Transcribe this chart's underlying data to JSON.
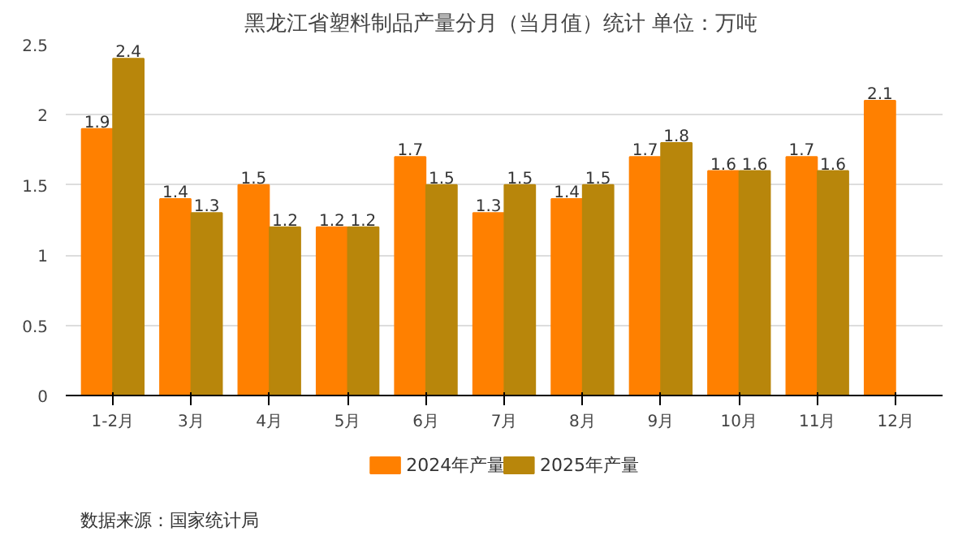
{
  "chart_data": {
    "type": "bar",
    "title": "黑龙江省塑料制品产量分月（当月值）统计  单位：万吨",
    "categories": [
      "1-2月",
      "3月",
      "4月",
      "5月",
      "6月",
      "7月",
      "8月",
      "9月",
      "10月",
      "11月",
      "12月"
    ],
    "series": [
      {
        "name": "2024年产量",
        "color": "#ff8000",
        "values": [
          1.9,
          1.4,
          1.5,
          1.2,
          1.7,
          1.3,
          1.4,
          1.7,
          1.6,
          1.7,
          2.1
        ]
      },
      {
        "name": "2025年产量",
        "color": "#b8860b",
        "values": [
          2.4,
          1.3,
          1.2,
          1.2,
          1.5,
          1.5,
          1.5,
          1.8,
          1.6,
          1.6,
          null
        ]
      }
    ],
    "ylim": [
      0,
      2.5
    ],
    "yticks": [
      0,
      0.5,
      1,
      1.5,
      2,
      2.5
    ],
    "grid": "y",
    "legend": "bottom",
    "data_labels": true,
    "annotations": [
      "数据来源：国家统计局"
    ]
  }
}
